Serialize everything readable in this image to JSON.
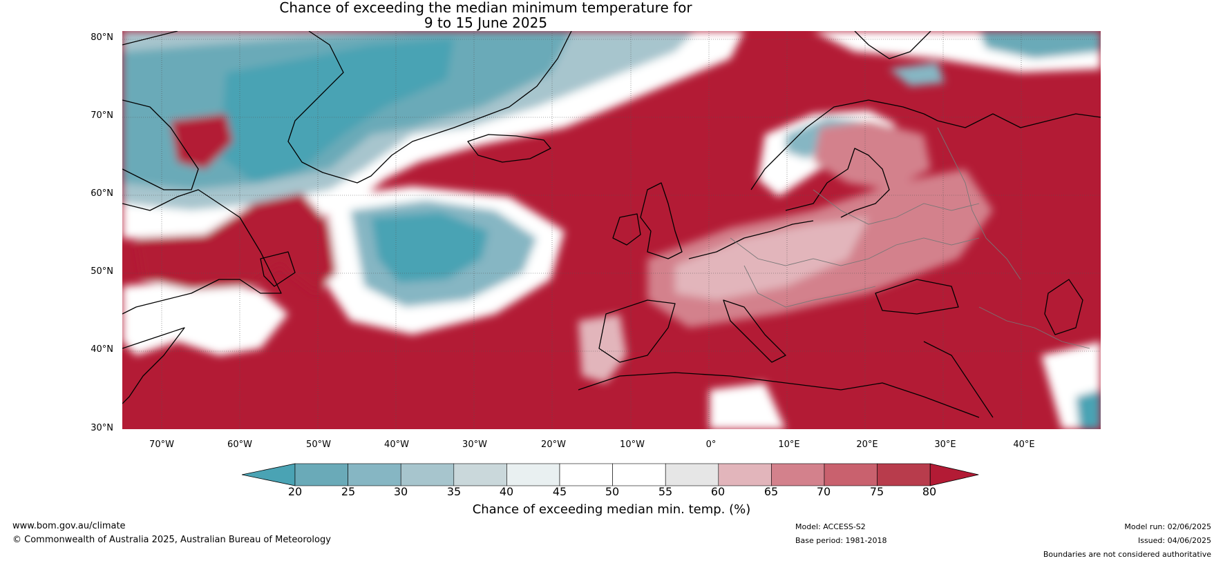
{
  "title_line1": "Chance of exceeding the median minimum temperature for",
  "title_line2": "9 to 15 June 2025",
  "lat_labels": [
    "80°N",
    "70°N",
    "60°N",
    "50°N",
    "40°N",
    "30°N"
  ],
  "lon_labels": [
    "70°W",
    "60°W",
    "50°W",
    "40°W",
    "30°W",
    "20°W",
    "10°W",
    "0°",
    "10°E",
    "20°E",
    "30°E",
    "40°E"
  ],
  "colorbar": {
    "ticks": [
      "20",
      "25",
      "30",
      "35",
      "40",
      "45",
      "50",
      "55",
      "60",
      "65",
      "70",
      "75",
      "80"
    ],
    "colors": [
      "#4aa3b4",
      "#6aaab8",
      "#86b6c3",
      "#a7c5cd",
      "#cad8db",
      "#e9f0f1",
      "#ffffff",
      "#ffffff",
      "#e6e6e6",
      "#e2b5bb",
      "#d3818c",
      "#c9616e",
      "#b83c4c",
      "#b31b35"
    ],
    "label": "Chance of exceeding median min. temp. (%)"
  },
  "footer": {
    "url": "www.bom.gov.au/climate",
    "copyright": "© Commonwealth of Australia 2025, Australian Bureau of Meteorology",
    "model": "Model: ACCESS-S2",
    "base_period": "Base period: 1981-2018",
    "model_run": "Model run: 02/06/2025",
    "issued": "Issued: 04/06/2025",
    "disclaimer": "Boundaries are not considered authoritative"
  }
}
